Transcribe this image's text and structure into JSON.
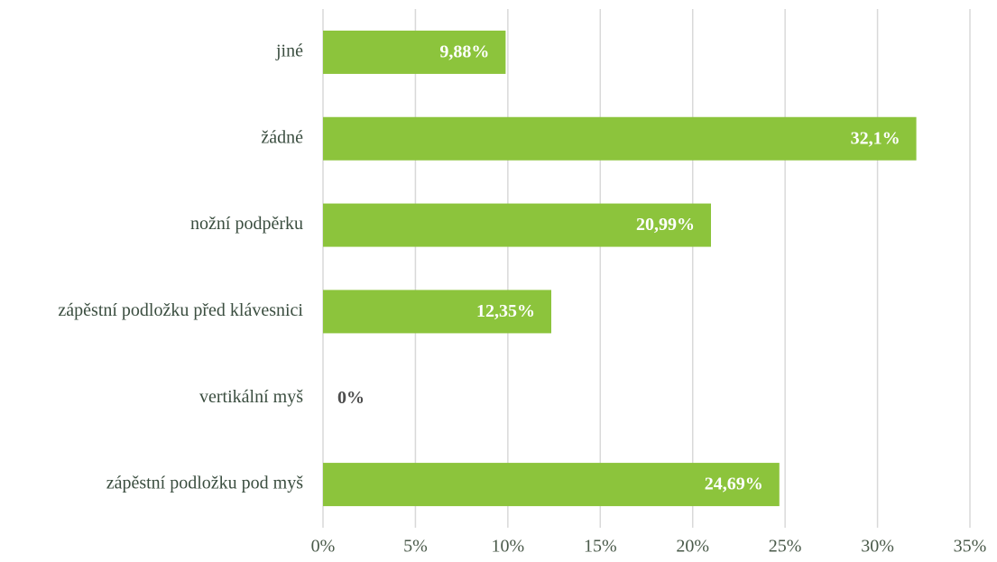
{
  "chart_data": {
    "type": "hbar",
    "categories": [
      "jiné",
      "žádné",
      "nožní podpěrku",
      "zápěstní podložku před klávesnici",
      "vertikální myš",
      "zápěstní podložku pod myš"
    ],
    "values": [
      9.88,
      32.1,
      20.99,
      12.35,
      0,
      24.69
    ],
    "value_labels": [
      "9,88%",
      "32,1%",
      "20,99%",
      "12,35%",
      "0%",
      "24,69%"
    ],
    "color": "#8cc43c",
    "xlim": [
      0,
      35
    ],
    "xticks": [
      {
        "value": 0,
        "label": "0%"
      },
      {
        "value": 5,
        "label": "5%"
      },
      {
        "value": 10,
        "label": "10%"
      },
      {
        "value": 15,
        "label": "15%"
      },
      {
        "value": 20,
        "label": "20%"
      },
      {
        "value": 25,
        "label": "25%"
      },
      {
        "value": 30,
        "label": "30%"
      },
      {
        "value": 35,
        "label": "35%"
      }
    ],
    "grid": true
  }
}
